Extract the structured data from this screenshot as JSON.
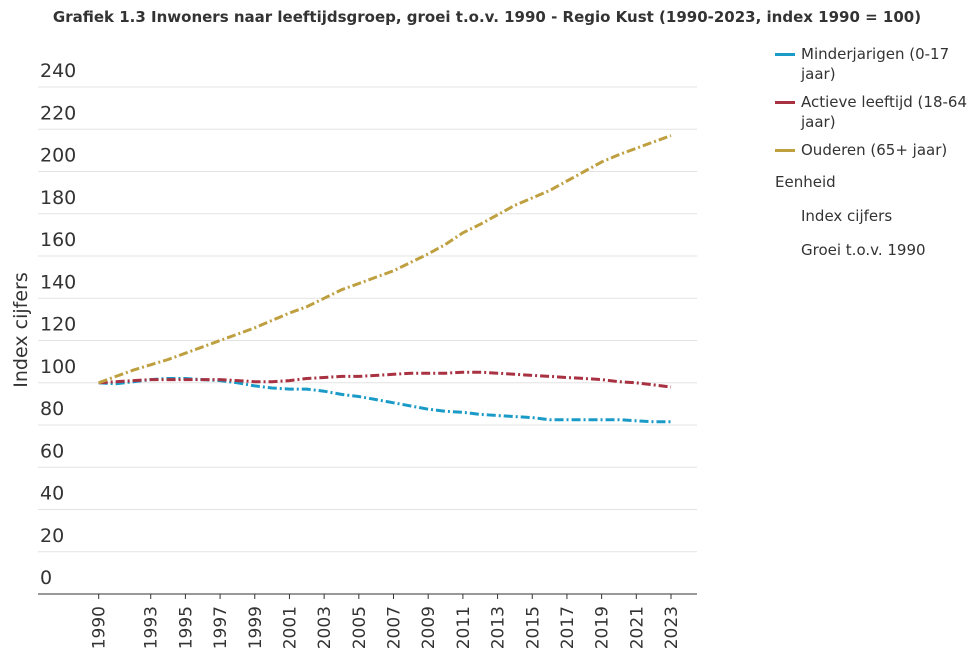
{
  "chart_data": {
    "type": "line",
    "title": "Grafiek 1.3 Inwoners naar leeftijdsgroep, groei t.o.v. 1990 - Regio Kust (1990-2023, index 1990 = 100)",
    "y_label": "Index cijfers",
    "x": [
      1990,
      1991,
      1992,
      1993,
      1994,
      1995,
      1996,
      1997,
      1998,
      1999,
      2000,
      2001,
      2002,
      2003,
      2004,
      2005,
      2006,
      2007,
      2008,
      2009,
      2010,
      2011,
      2012,
      2013,
      2014,
      2015,
      2016,
      2017,
      2018,
      2019,
      2020,
      2021,
      2022,
      2023
    ],
    "xlim": [
      1986.5,
      2024.5
    ],
    "xticks": [
      1990,
      1993,
      1995,
      1997,
      1999,
      2001,
      2003,
      2005,
      2007,
      2009,
      2011,
      2013,
      2015,
      2017,
      2019,
      2021,
      2023
    ],
    "ylim": [
      0,
      240
    ],
    "yticks": [
      0,
      20,
      40,
      60,
      80,
      100,
      120,
      140,
      160,
      180,
      200,
      220,
      240
    ],
    "grid": true,
    "legend_title": "Eenheid",
    "legend_options": [
      "Index cijfers",
      "Groei t.o.v. 1990"
    ],
    "series": [
      {
        "name": "Minderjarigen (0-17 jaar)",
        "color": "#1a9bc7",
        "values": [
          100,
          99.5,
          100.5,
          101.5,
          102,
          102,
          101.5,
          101,
          100,
          98.5,
          97.5,
          97,
          97,
          96,
          94.5,
          93.5,
          92,
          90.5,
          89,
          87.5,
          86.5,
          86,
          85,
          84.5,
          84,
          83.5,
          82.5,
          82.5,
          82.5,
          82.5,
          82.5,
          82,
          81.5,
          81.5
        ]
      },
      {
        "name": "Actieve leeftijd (18-64 jaar)",
        "color": "#a83242",
        "values": [
          100,
          100.5,
          101,
          101.5,
          101.5,
          101.5,
          101.5,
          101.5,
          101,
          100.5,
          100.5,
          101,
          102,
          102.5,
          103,
          103,
          103.5,
          104,
          104.5,
          104.5,
          104.5,
          105,
          105,
          104.5,
          104,
          103.5,
          103,
          102.5,
          102,
          101.5,
          100.5,
          100,
          99,
          98
        ]
      },
      {
        "name": "Ouderen (65+ jaar)",
        "color": "#bfa040",
        "values": [
          100,
          103,
          106,
          108.5,
          111,
          114,
          117,
          120,
          123,
          126,
          129.5,
          133,
          136,
          140,
          144,
          147,
          150,
          153,
          157,
          161,
          165.5,
          171,
          175,
          179.5,
          184,
          187.5,
          191,
          195.5,
          200,
          204.5,
          208,
          211,
          214,
          217
        ]
      }
    ]
  }
}
